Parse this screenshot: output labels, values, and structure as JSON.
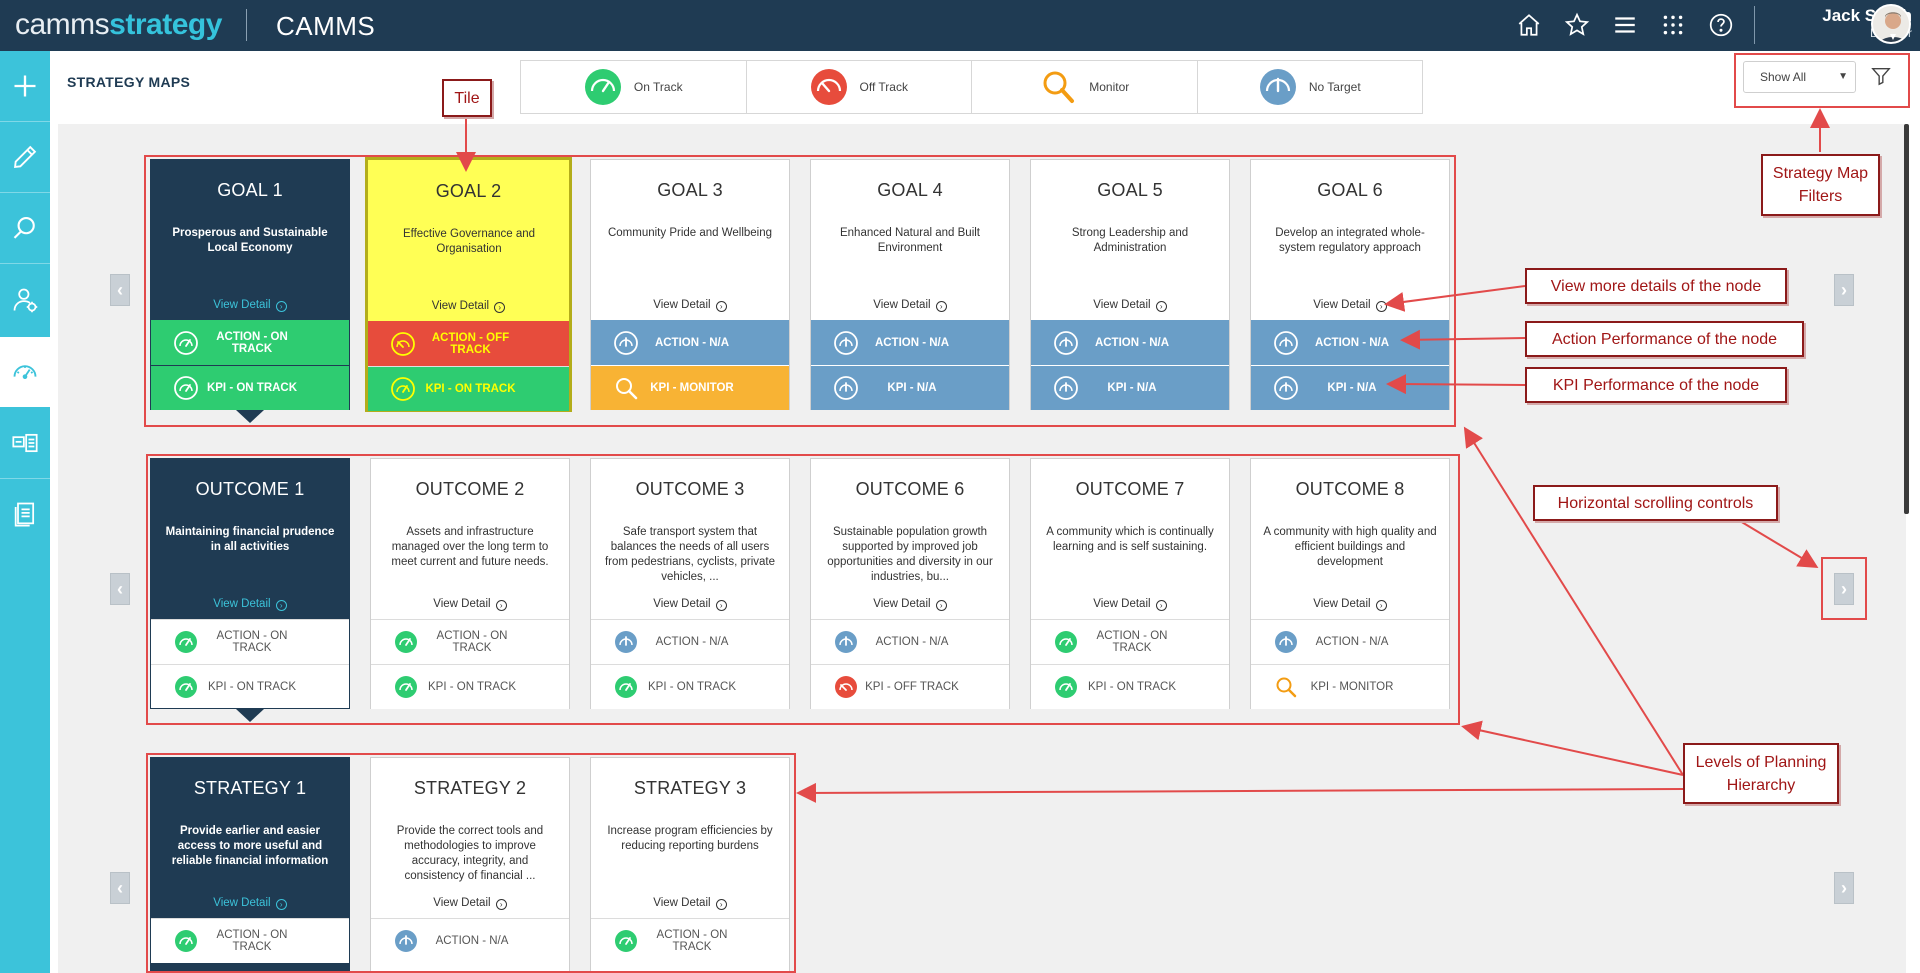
{
  "topbar": {
    "brand_part1": "camms",
    "brand_part2": "strategy",
    "app_name": "CAMMS",
    "icons": [
      "home-icon",
      "star-icon",
      "menu-icon",
      "apps-grid-icon",
      "help-icon"
    ],
    "user_name": "Jack Smith",
    "user_role": "Director"
  },
  "sidebar": {
    "items": [
      "plus-icon",
      "pencil-icon",
      "search-icon",
      "user-settings-icon",
      "gauge-icon",
      "list-view-icon",
      "document-icon"
    ],
    "active_index": 4
  },
  "page_title": "STRATEGY MAPS",
  "legend": [
    {
      "label": "On Track",
      "icon": "on-track-gauge-icon",
      "color": "#2ecc71"
    },
    {
      "label": "Off Track",
      "icon": "off-track-gauge-icon",
      "color": "#e74c3c"
    },
    {
      "label": "Monitor",
      "icon": "monitor-magnifier-icon",
      "color": "#f39c12"
    },
    {
      "label": "No Target",
      "icon": "no-target-gauge-icon",
      "color": "#6a9ec7"
    }
  ],
  "filter": {
    "selected": "Show All"
  },
  "view_detail_label": "View Detail",
  "levels": [
    {
      "name": "goals",
      "tiles": [
        {
          "title": "GOAL 1",
          "desc": "Prosperous and Sustainable Local Economy",
          "action": "ACTION - ON TRACK",
          "kpi": "KPI - ON TRACK"
        },
        {
          "title": "GOAL 2",
          "desc": "Effective Governance and Organisation",
          "action": "ACTION - OFF TRACK",
          "kpi": "KPI - ON TRACK"
        },
        {
          "title": "GOAL 3",
          "desc": "Community Pride and Wellbeing",
          "action": "ACTION - N/A",
          "kpi": "KPI - MONITOR"
        },
        {
          "title": "GOAL 4",
          "desc": "Enhanced Natural and Built Environment",
          "action": "ACTION - N/A",
          "kpi": "KPI - N/A"
        },
        {
          "title": "GOAL 5",
          "desc": "Strong Leadership and Administration",
          "action": "ACTION - N/A",
          "kpi": "KPI - N/A"
        },
        {
          "title": "GOAL 6",
          "desc": "Develop an integrated whole-system regulatory approach",
          "action": "ACTION - N/A",
          "kpi": "KPI - N/A"
        }
      ]
    },
    {
      "name": "outcomes",
      "tiles": [
        {
          "title": "OUTCOME 1",
          "desc": "Maintaining financial prudence in all activities",
          "action": "ACTION - ON TRACK",
          "kpi": "KPI - ON TRACK"
        },
        {
          "title": "OUTCOME 2",
          "desc": "Assets and infrastructure managed over the long term to meet current and future needs.",
          "action": "ACTION - ON TRACK",
          "kpi": "KPI - ON TRACK"
        },
        {
          "title": "OUTCOME 3",
          "desc": "Safe transport system that balances the needs of all users from pedestrians, cyclists, private vehicles, ...",
          "action": "ACTION - N/A",
          "kpi": "KPI - ON TRACK"
        },
        {
          "title": "OUTCOME 6",
          "desc": "Sustainable population growth supported by improved job opportunities and diversity in our industries, bu...",
          "action": "ACTION - N/A",
          "kpi": "KPI - OFF TRACK"
        },
        {
          "title": "OUTCOME 7",
          "desc": "A community which is continually learning and is self sustaining.",
          "action": "ACTION - ON TRACK",
          "kpi": "KPI - ON TRACK"
        },
        {
          "title": "OUTCOME 8",
          "desc": "A community with high quality and efficient buildings and development",
          "action": "ACTION - N/A",
          "kpi": "KPI - MONITOR"
        }
      ]
    },
    {
      "name": "strategies",
      "tiles": [
        {
          "title": "STRATEGY 1",
          "desc": "Provide earlier and easier access to more useful and reliable financial information",
          "action": "ACTION - ON TRACK"
        },
        {
          "title": "STRATEGY 2",
          "desc": "Provide the correct tools and methodologies to improve accuracy, integrity, and consistency of financial ...",
          "action": "ACTION - N/A"
        },
        {
          "title": "STRATEGY 3",
          "desc": "Increase program efficiencies by reducing reporting burdens",
          "action": "ACTION - ON TRACK"
        }
      ]
    }
  ],
  "annotations": {
    "tile": "Tile",
    "filters": "Strategy Map Filters",
    "view_more": "View more details of the node",
    "action_perf": "Action Performance of the node",
    "kpi_perf": "KPI Performance of the node",
    "hscroll": "Horizontal scrolling controls",
    "levels": "Levels of Planning Hierarchy"
  }
}
